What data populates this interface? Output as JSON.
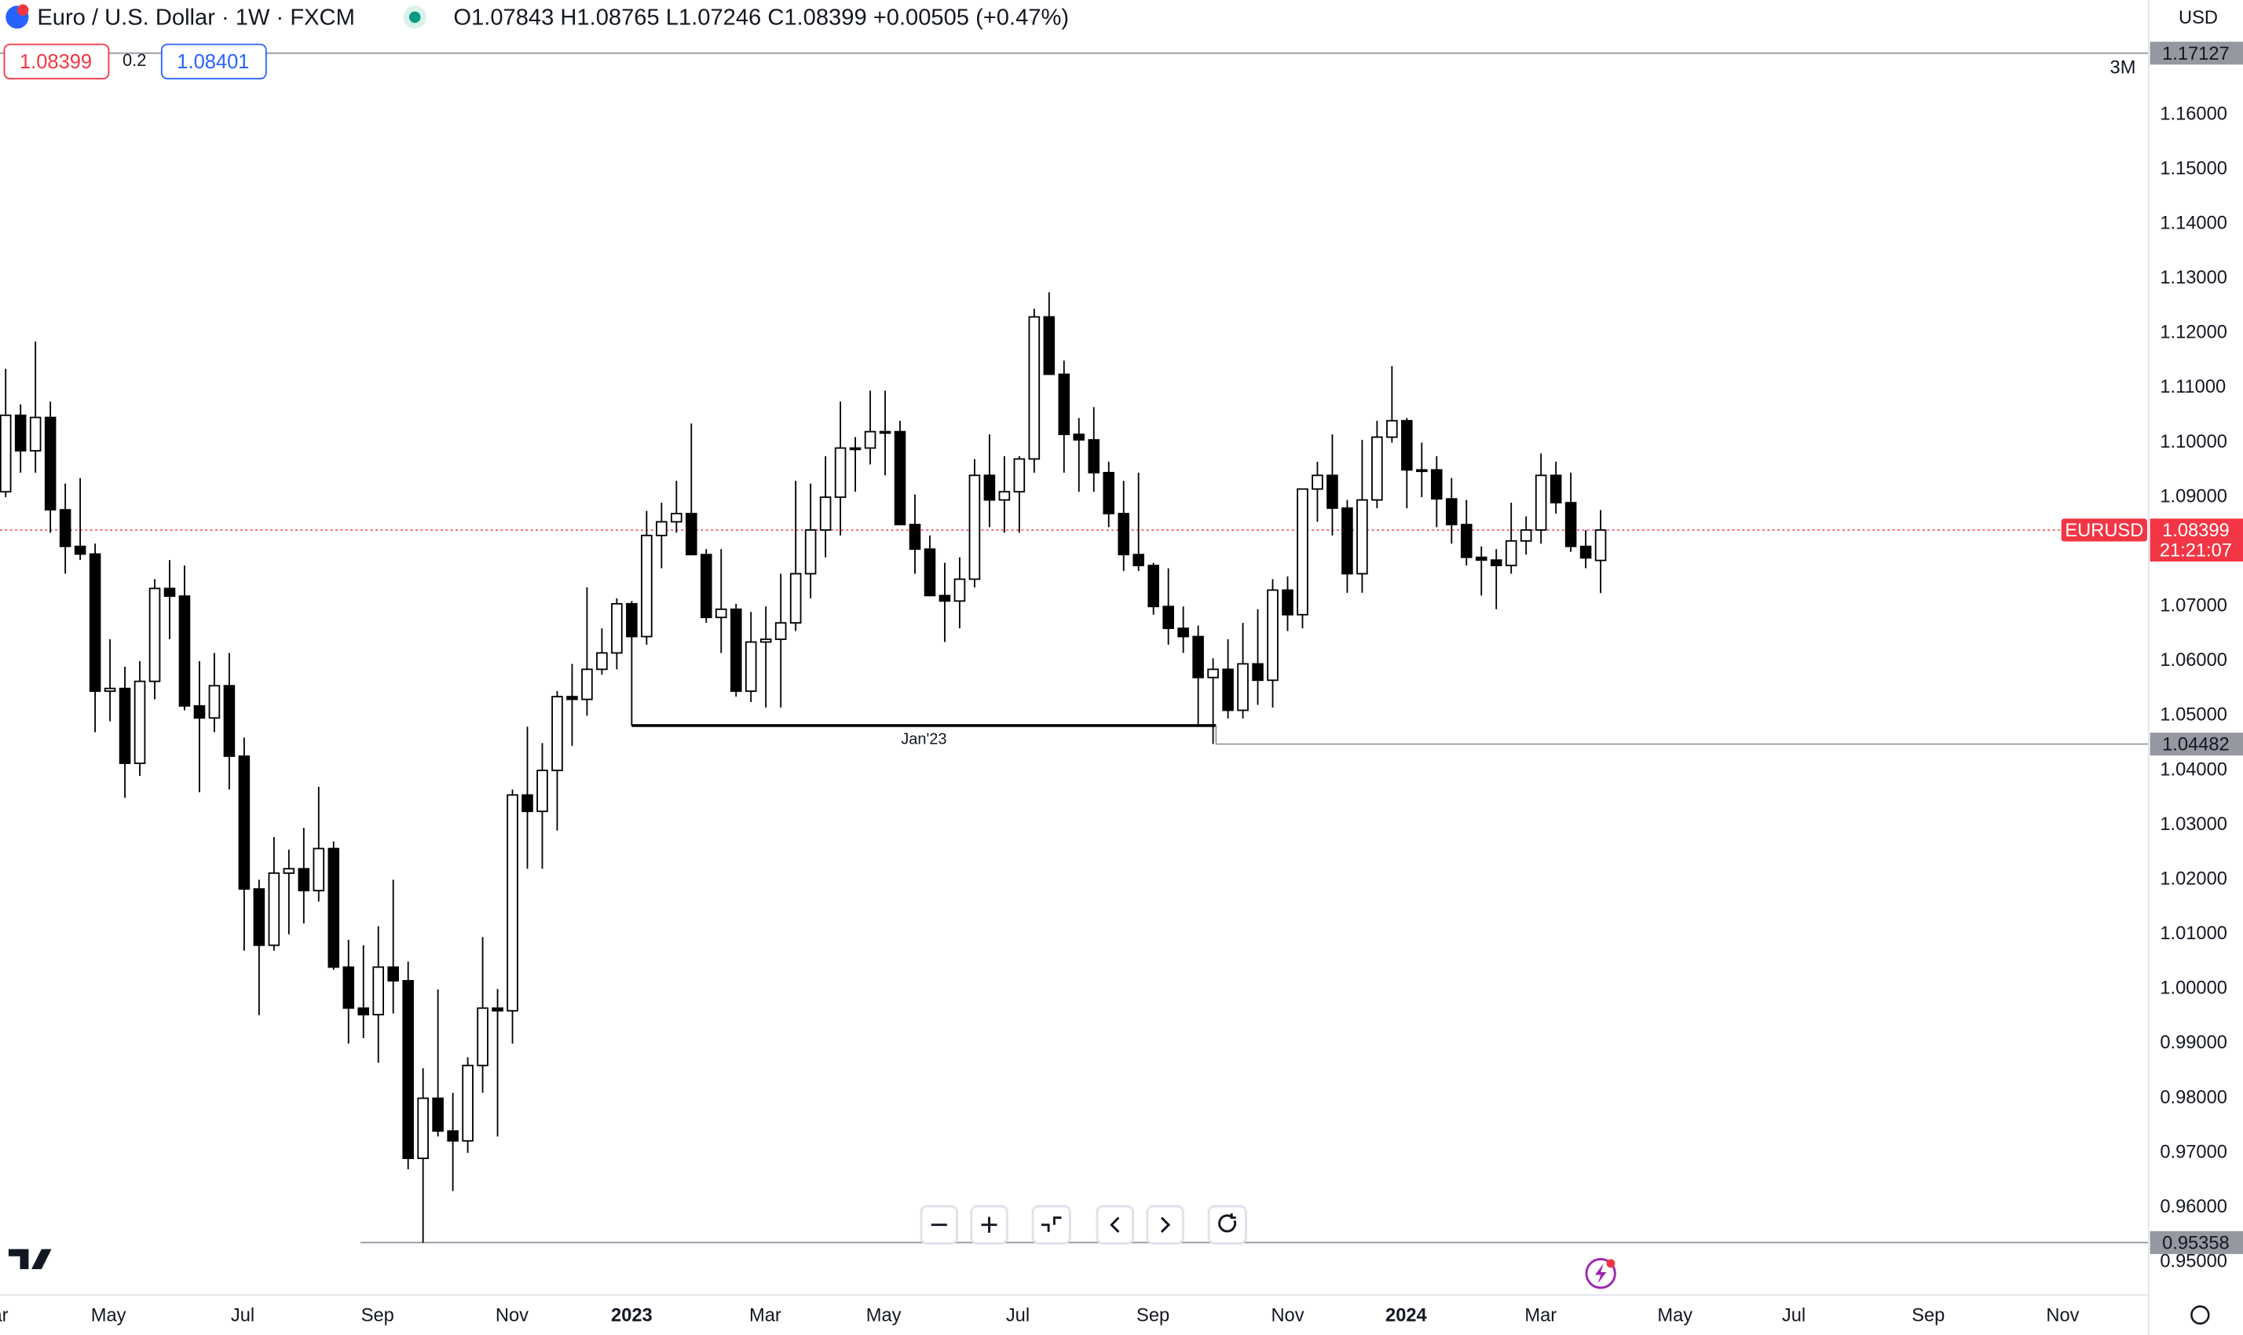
{
  "header": {
    "symbol": "Euro / U.S. Dollar · 1W · FXCM",
    "ohlc_labels": [
      "O",
      "H",
      "L",
      "C"
    ],
    "change": "+0.00505 (+0.47%)",
    "currency": "USD",
    "range": "3M",
    "ticker": "EURUSD",
    "countdown": "21:21:07"
  },
  "trade": {
    "spread": "0.2",
    "buy": 1.08401
  },
  "chart_data": {
    "type": "candlestick",
    "up_color": "#ffffff",
    "down_color": "#000000",
    "wick_color": "#000000",
    "annotation": "Jan'23",
    "levels": [
      1.17127
    ],
    "xlim": [
      -0.38,
      143.76
    ],
    "ylim": [
      0.944,
      1.181
    ],
    "xticks": [
      {
        "value": -0.9,
        "label": "Mar"
      },
      {
        "value": 6.9,
        "label": "May"
      },
      {
        "value": 15.9,
        "label": "Jul"
      },
      {
        "value": 24.95,
        "label": "Sep"
      },
      {
        "value": 33.97,
        "label": "Nov"
      },
      {
        "value": 42,
        "label": "2023"
      },
      {
        "value": 50.96,
        "label": "Mar"
      },
      {
        "value": 58.9,
        "label": "May"
      },
      {
        "value": 67.9,
        "label": "Jul"
      },
      {
        "value": 76.97,
        "label": "Sep"
      },
      {
        "value": 86,
        "label": "Nov"
      },
      {
        "value": 93.95,
        "label": "2024"
      },
      {
        "value": 102.98,
        "label": "Mar"
      },
      {
        "value": 111.99,
        "label": "May"
      },
      {
        "value": 119.96,
        "label": "Jul"
      },
      {
        "value": 128.98,
        "label": "Sep"
      },
      {
        "value": 138,
        "label": "Nov"
      }
    ],
    "yticks": [
      {
        "value": 1.16,
        "label": "1.16000"
      },
      {
        "value": 1.15,
        "label": "1.15000"
      },
      {
        "value": 1.14,
        "label": "1.14000"
      },
      {
        "value": 1.13,
        "label": "1.13000"
      },
      {
        "value": 1.12,
        "label": "1.12000"
      },
      {
        "value": 1.11,
        "label": "1.11000"
      },
      {
        "value": 1.1,
        "label": "1.10000"
      },
      {
        "value": 1.09,
        "label": "1.09000"
      },
      {
        "value": 1.07,
        "label": "1.07000"
      },
      {
        "value": 1.06,
        "label": "1.06000"
      },
      {
        "value": 1.05,
        "label": "1.05000"
      },
      {
        "value": 1.04,
        "label": "1.04000"
      },
      {
        "value": 1.03,
        "label": "1.03000"
      },
      {
        "value": 1.02,
        "label": "1.02000"
      },
      {
        "value": 1.01,
        "label": "1.01000"
      },
      {
        "value": 1,
        "label": "1.00000"
      },
      {
        "value": 0.99,
        "label": "0.99000"
      },
      {
        "value": 0.98,
        "label": "0.98000"
      },
      {
        "value": 0.97,
        "label": "0.97000"
      },
      {
        "value": 0.96,
        "label": "0.96000"
      },
      {
        "value": 0.95,
        "label": "0.95000"
      }
    ],
    "open": [
      1.091,
      1.105,
      1.0985,
      1.1046,
      1.0877,
      1.081,
      1.0796,
      1.0545,
      1.055,
      1.0413,
      1.0563,
      1.0733,
      1.0719,
      1.0518,
      1.0496,
      1.0555,
      1.0426,
      1.0183,
      1.008,
      1.0212,
      1.022,
      1.018,
      1.0257,
      1.004,
      0.9965,
      0.9953,
      1.004,
      1.0015,
      0.969,
      0.98,
      0.974,
      0.9722,
      0.986,
      0.9965,
      0.996,
      1.0355,
      1.0325,
      1.04,
      1.0535,
      1.053,
      1.0585,
      1.0615,
      1.0705,
      1.0645,
      1.083,
      1.0855,
      1.087,
      1.0795,
      1.068,
      1.0695,
      1.0545,
      1.0635,
      1.064,
      1.067,
      1.076,
      1.084,
      1.09,
      1.099,
      1.099,
      1.102,
      1.102,
      1.085,
      1.0805,
      1.072,
      1.071,
      1.075,
      1.094,
      1.0895,
      1.091,
      1.097,
      1.123,
      1.1125,
      1.1015,
      1.1005,
      1.0945,
      1.087,
      1.0795,
      1.0775,
      1.07,
      1.066,
      1.0645,
      1.057,
      1.0585,
      1.051,
      1.0595,
      1.0565,
      1.073,
      1.0685,
      1.0915,
      1.094,
      1.088,
      1.076,
      1.0895,
      1.101,
      1.104,
      1.095,
      1.095,
      1.0897,
      1.085,
      1.079,
      1.0785,
      1.0775,
      1.082,
      1.084,
      1.094,
      1.089,
      1.081,
      1.07843
    ],
    "high": [
      1.1135,
      1.107,
      1.1185,
      1.1075,
      1.0925,
      1.0935,
      1.0815,
      1.064,
      1.059,
      1.06,
      1.075,
      1.0785,
      1.0775,
      1.06,
      1.0615,
      1.0615,
      1.046,
      1.02,
      1.0278,
      1.0255,
      1.0295,
      1.037,
      1.027,
      1.009,
      1.008,
      1.0115,
      1.02,
      1.005,
      0.9855,
      0.9999,
      0.981,
      0.9875,
      1.0095,
      1.0,
      1.0365,
      1.048,
      1.045,
      1.0545,
      1.0595,
      1.0735,
      1.066,
      1.0715,
      1.071,
      1.0875,
      1.089,
      1.093,
      1.1035,
      1.0805,
      1.0805,
      1.0705,
      1.069,
      1.07,
      1.076,
      1.093,
      1.0925,
      1.0975,
      1.1075,
      1.101,
      1.1095,
      1.1095,
      1.104,
      1.0905,
      1.083,
      1.078,
      1.079,
      1.097,
      1.1015,
      1.0975,
      1.0975,
      1.1245,
      1.1275,
      1.115,
      1.1045,
      1.1065,
      1.0965,
      1.093,
      1.0945,
      1.078,
      1.077,
      1.07,
      1.0665,
      1.0605,
      1.064,
      1.067,
      1.0695,
      1.075,
      1.0755,
      1.0915,
      1.0965,
      1.1015,
      1.0895,
      1.1005,
      1.104,
      1.114,
      1.1045,
      1.1,
      1.0975,
      1.0935,
      1.0895,
      1.081,
      1.0805,
      1.089,
      1.0865,
      1.098,
      1.0965,
      1.0945,
      1.084,
      1.08765
    ],
    "low": [
      1.09,
      1.0945,
      1.0945,
      1.0835,
      1.076,
      1.0785,
      1.047,
      1.049,
      1.035,
      1.039,
      1.053,
      1.064,
      1.051,
      1.036,
      1.047,
      1.0365,
      1.007,
      0.9952,
      1.007,
      1.01,
      1.012,
      1.016,
      1.0035,
      0.99,
      0.991,
      0.9865,
      0.9955,
      0.967,
      0.95358,
      0.973,
      0.963,
      0.97,
      0.981,
      0.973,
      0.99,
      1.022,
      1.022,
      1.029,
      1.0445,
      1.05,
      1.0575,
      1.0585,
      1.0482,
      1.063,
      1.077,
      1.0835,
      1.0795,
      1.067,
      1.0615,
      1.0535,
      1.0525,
      1.0515,
      1.0515,
      1.0655,
      1.0715,
      1.079,
      1.083,
      1.091,
      1.096,
      1.094,
      1.085,
      1.076,
      1.072,
      1.0635,
      1.066,
      1.0735,
      1.0845,
      1.0835,
      1.0835,
      1.0945,
      1.1125,
      1.0945,
      1.091,
      1.091,
      1.0845,
      1.0765,
      1.0765,
      1.0685,
      1.063,
      1.0615,
      1.0485,
      1.04482,
      1.0495,
      1.0495,
      1.052,
      1.0515,
      1.0655,
      1.066,
      1.0855,
      1.083,
      1.0725,
      1.0725,
      1.088,
      1.1,
      1.088,
      1.09,
      1.0845,
      1.0815,
      1.0775,
      1.072,
      1.0695,
      1.076,
      1.0795,
      1.0815,
      1.087,
      1.08,
      1.077,
      1.07246
    ],
    "close": [
      1.105,
      1.0985,
      1.1046,
      1.0877,
      1.081,
      1.0796,
      1.0545,
      1.055,
      1.0413,
      1.0563,
      1.0733,
      1.0719,
      1.0518,
      1.0496,
      1.0555,
      1.0426,
      1.0183,
      1.008,
      1.0212,
      1.022,
      1.018,
      1.0257,
      1.004,
      0.9965,
      0.9953,
      1.004,
      1.0015,
      0.969,
      0.98,
      0.974,
      0.9722,
      0.986,
      0.9965,
      0.996,
      1.0355,
      1.0325,
      1.04,
      1.0535,
      1.053,
      1.0585,
      1.0615,
      1.0705,
      1.0645,
      1.083,
      1.0855,
      1.087,
      1.0795,
      1.068,
      1.0695,
      1.0545,
      1.0635,
      1.064,
      1.067,
      1.076,
      1.084,
      1.09,
      1.099,
      1.099,
      1.102,
      1.102,
      1.085,
      1.0805,
      1.072,
      1.071,
      1.075,
      1.094,
      1.0895,
      1.091,
      1.097,
      1.123,
      1.1125,
      1.1015,
      1.1005,
      1.0945,
      1.087,
      1.0795,
      1.0775,
      1.07,
      1.066,
      1.0645,
      1.057,
      1.0585,
      1.051,
      1.0595,
      1.0565,
      1.073,
      1.0685,
      1.0915,
      1.094,
      1.088,
      1.076,
      1.0895,
      1.101,
      1.104,
      1.095,
      1.095,
      1.0897,
      1.085,
      1.079,
      1.0785,
      1.0775,
      1.082,
      1.084,
      1.094,
      1.089,
      1.081,
      1.0789,
      1.08399
    ]
  }
}
